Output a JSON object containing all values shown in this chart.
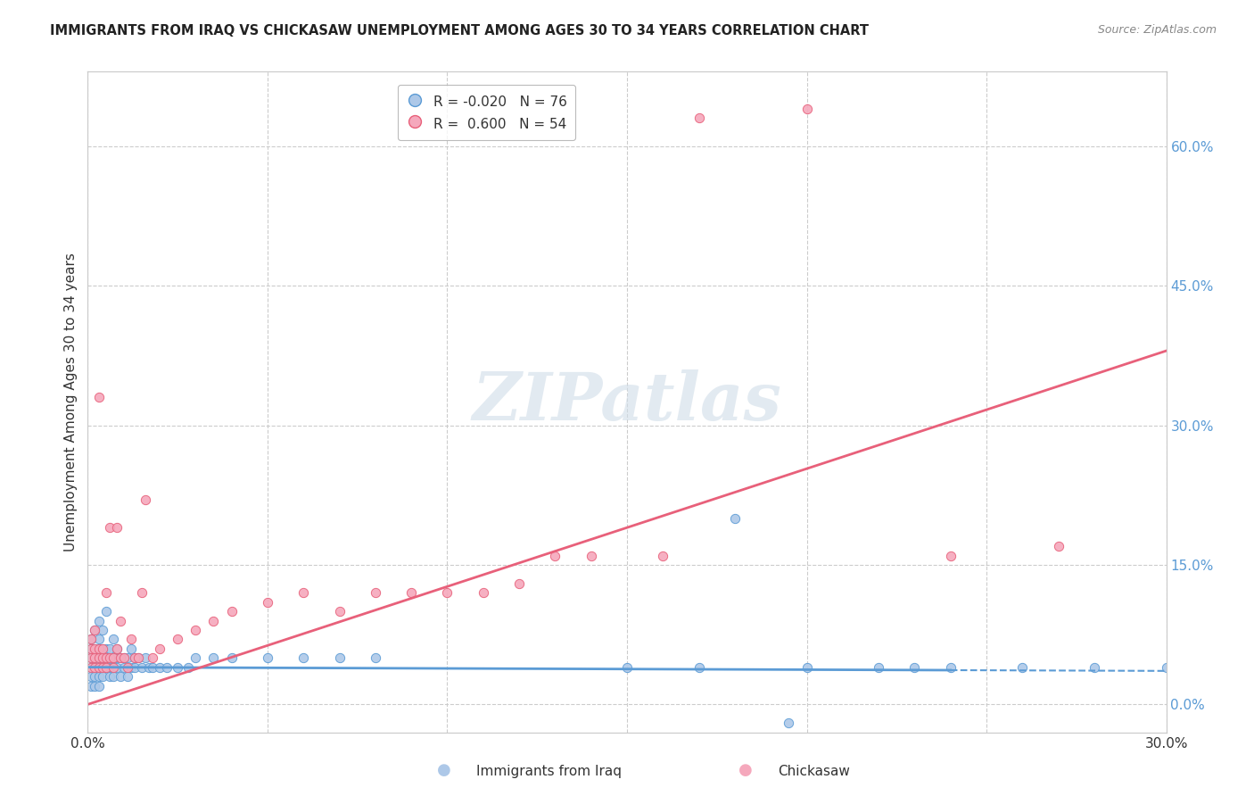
{
  "title": "IMMIGRANTS FROM IRAQ VS CHICKASAW UNEMPLOYMENT AMONG AGES 30 TO 34 YEARS CORRELATION CHART",
  "source": "Source: ZipAtlas.com",
  "ylabel": "Unemployment Among Ages 30 to 34 years",
  "xlim": [
    0.0,
    0.3
  ],
  "ylim": [
    -0.03,
    0.68
  ],
  "xticks": [
    0.0,
    0.05,
    0.1,
    0.15,
    0.2,
    0.25,
    0.3
  ],
  "xtick_labels": [
    "0.0%",
    "",
    "",
    "",
    "",
    "",
    "30.0%"
  ],
  "ytick_right": [
    0.0,
    0.15,
    0.3,
    0.45,
    0.6
  ],
  "ytick_right_labels": [
    "0.0%",
    "15.0%",
    "30.0%",
    "45.0%",
    "60.0%"
  ],
  "blue_R": -0.02,
  "blue_N": 76,
  "pink_R": 0.6,
  "pink_N": 54,
  "blue_color": "#adc8e8",
  "pink_color": "#f5a8bc",
  "blue_line_color": "#5b9bd5",
  "pink_line_color": "#e8607a",
  "watermark": "ZIPatlas",
  "blue_trend_x0": 0.0,
  "blue_trend_y0": 0.04,
  "blue_trend_x1": 0.3,
  "blue_trend_y1": 0.036,
  "blue_trend_solid_end": 0.24,
  "pink_trend_x0": 0.0,
  "pink_trend_y0": 0.0,
  "pink_trend_x1": 0.3,
  "pink_trend_y1": 0.38,
  "blue_x": [
    0.001,
    0.001,
    0.001,
    0.001,
    0.001,
    0.001,
    0.002,
    0.002,
    0.002,
    0.002,
    0.002,
    0.002,
    0.003,
    0.003,
    0.003,
    0.003,
    0.003,
    0.003,
    0.003,
    0.004,
    0.004,
    0.004,
    0.004,
    0.004,
    0.005,
    0.005,
    0.005,
    0.005,
    0.006,
    0.006,
    0.006,
    0.006,
    0.007,
    0.007,
    0.007,
    0.007,
    0.008,
    0.008,
    0.008,
    0.009,
    0.009,
    0.01,
    0.01,
    0.011,
    0.011,
    0.012,
    0.012,
    0.013,
    0.013,
    0.014,
    0.015,
    0.016,
    0.017,
    0.018,
    0.02,
    0.022,
    0.025,
    0.028,
    0.03,
    0.035,
    0.04,
    0.05,
    0.06,
    0.07,
    0.08,
    0.15,
    0.17,
    0.2,
    0.22,
    0.24,
    0.18,
    0.26,
    0.28,
    0.3,
    0.195,
    0.23
  ],
  "blue_y": [
    0.05,
    0.04,
    0.06,
    0.03,
    0.07,
    0.02,
    0.05,
    0.04,
    0.06,
    0.03,
    0.08,
    0.02,
    0.05,
    0.04,
    0.06,
    0.03,
    0.07,
    0.09,
    0.02,
    0.05,
    0.04,
    0.06,
    0.08,
    0.03,
    0.05,
    0.04,
    0.06,
    0.1,
    0.05,
    0.04,
    0.06,
    0.03,
    0.05,
    0.04,
    0.07,
    0.03,
    0.05,
    0.04,
    0.06,
    0.05,
    0.03,
    0.05,
    0.04,
    0.05,
    0.03,
    0.04,
    0.06,
    0.05,
    0.04,
    0.05,
    0.04,
    0.05,
    0.04,
    0.04,
    0.04,
    0.04,
    0.04,
    0.04,
    0.05,
    0.05,
    0.05,
    0.05,
    0.05,
    0.05,
    0.05,
    0.04,
    0.04,
    0.04,
    0.04,
    0.04,
    0.2,
    0.04,
    0.04,
    0.04,
    -0.02,
    0.04
  ],
  "pink_x": [
    0.001,
    0.001,
    0.001,
    0.001,
    0.002,
    0.002,
    0.002,
    0.002,
    0.003,
    0.003,
    0.003,
    0.003,
    0.004,
    0.004,
    0.004,
    0.005,
    0.005,
    0.005,
    0.006,
    0.006,
    0.007,
    0.007,
    0.008,
    0.008,
    0.009,
    0.009,
    0.01,
    0.011,
    0.012,
    0.013,
    0.014,
    0.015,
    0.016,
    0.018,
    0.02,
    0.025,
    0.03,
    0.035,
    0.04,
    0.05,
    0.06,
    0.07,
    0.08,
    0.09,
    0.1,
    0.11,
    0.12,
    0.13,
    0.14,
    0.16,
    0.17,
    0.2,
    0.24,
    0.27
  ],
  "pink_y": [
    0.05,
    0.04,
    0.06,
    0.07,
    0.05,
    0.04,
    0.06,
    0.08,
    0.05,
    0.04,
    0.06,
    0.33,
    0.05,
    0.04,
    0.06,
    0.05,
    0.04,
    0.12,
    0.05,
    0.19,
    0.05,
    0.04,
    0.06,
    0.19,
    0.05,
    0.09,
    0.05,
    0.04,
    0.07,
    0.05,
    0.05,
    0.12,
    0.22,
    0.05,
    0.06,
    0.07,
    0.08,
    0.09,
    0.1,
    0.11,
    0.12,
    0.1,
    0.12,
    0.12,
    0.12,
    0.12,
    0.13,
    0.16,
    0.16,
    0.16,
    0.63,
    0.64,
    0.16,
    0.17
  ]
}
